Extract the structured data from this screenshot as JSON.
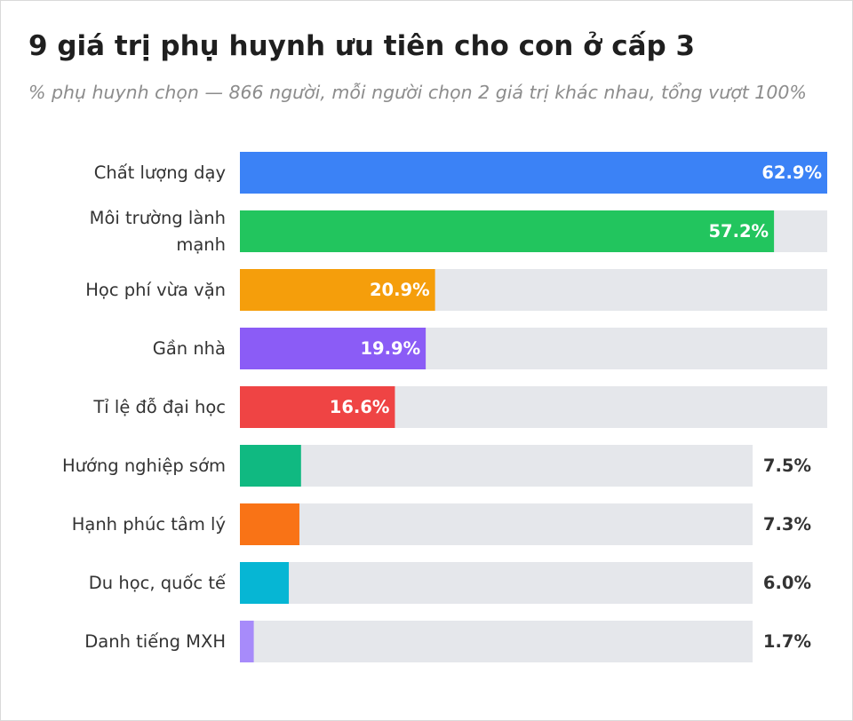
{
  "chart_data": {
    "type": "bar",
    "orientation": "horizontal",
    "title": "9 giá trị phụ huynh ưu tiên cho con ở cấp 3",
    "subtitle": "% phụ huynh chọn — 866 người, mỗi người chọn 2 giá trị khác nhau, tổng vượt 100%",
    "xlim": [
      0,
      62.9
    ],
    "grid": false,
    "legend": "none",
    "categories": [
      "Chất lượng dạy",
      "Môi trường lành mạnh",
      "Học phí vừa vặn",
      "Gần nhà",
      "Tỉ lệ đỗ đại học",
      "Hướng nghiệp sớm",
      "Hạnh phúc tâm lý",
      "Du học, quốc tế",
      "Danh tiếng MXH"
    ],
    "label_lines": [
      [
        "Chất lượng dạy"
      ],
      [
        "Môi trường lành",
        "mạnh"
      ],
      [
        "Học phí vừa vặn"
      ],
      [
        "Gần nhà"
      ],
      [
        "Tỉ lệ đỗ đại học"
      ],
      [
        "Hướng nghiệp sớm"
      ],
      [
        "Hạnh phúc tâm lý"
      ],
      [
        "Du học, quốc tế"
      ],
      [
        "Danh tiếng MXH"
      ]
    ],
    "values": [
      62.9,
      57.2,
      20.9,
      19.9,
      16.6,
      7.5,
      7.3,
      6.0,
      1.7
    ],
    "value_labels": [
      "62.9%",
      "57.2%",
      "20.9%",
      "19.9%",
      "16.6%",
      "7.5%",
      "7.3%",
      "6.0%",
      "1.7%"
    ],
    "colors": [
      "#3b82f6",
      "#22c55e",
      "#f59e0b",
      "#8b5cf6",
      "#ef4444",
      "#10b981",
      "#f97316",
      "#06b6d4",
      "#a78bfa"
    ],
    "track_color": "#e5e7eb"
  }
}
